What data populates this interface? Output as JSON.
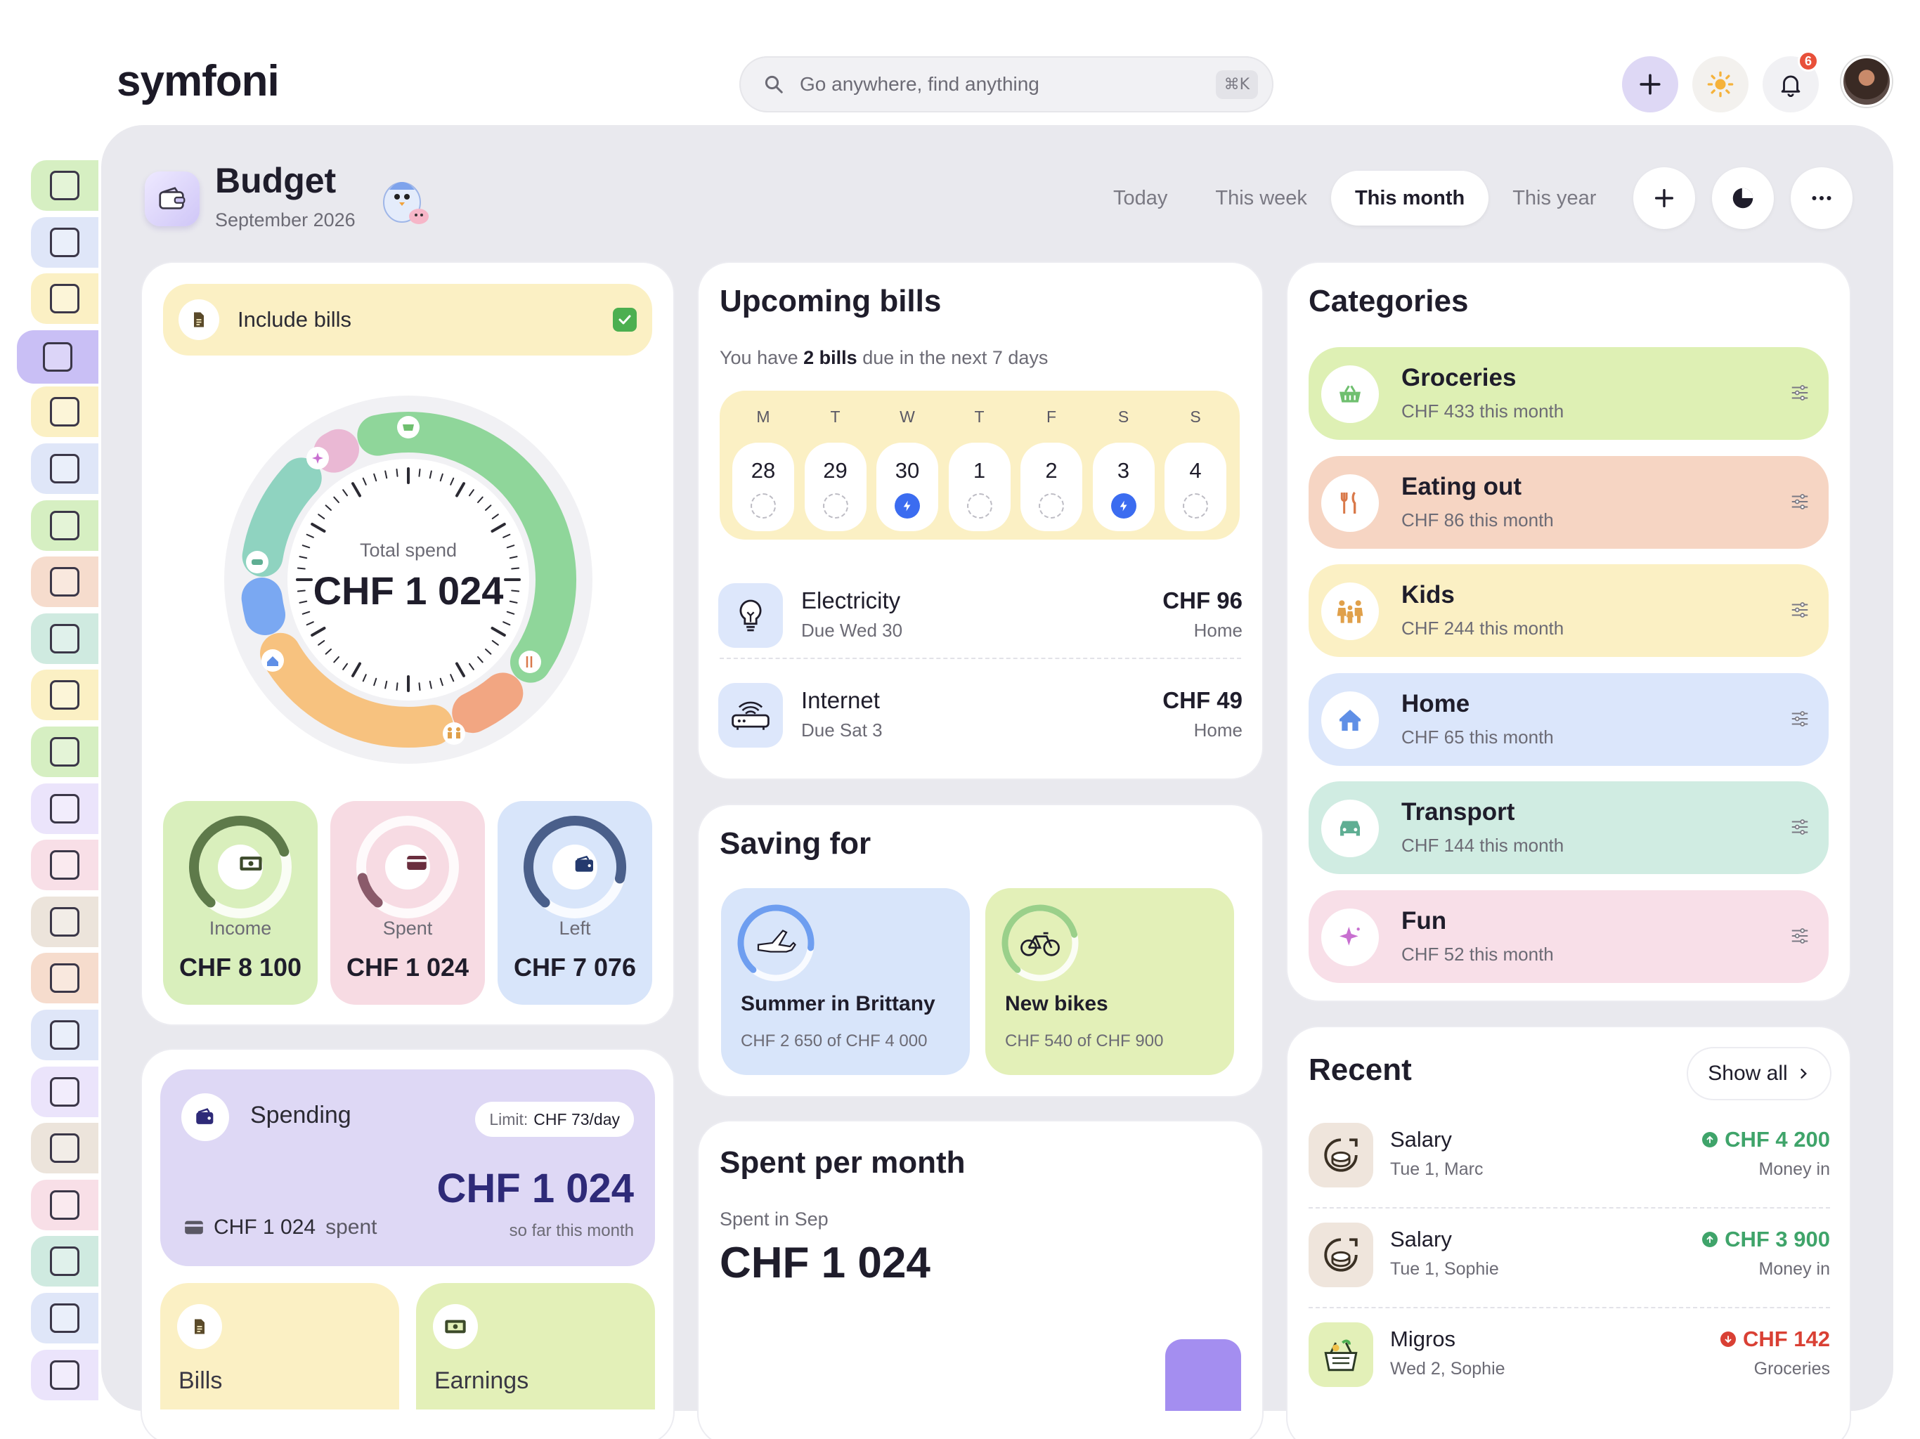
{
  "app": {
    "logo_text": "symfoni",
    "logo_dot": "i"
  },
  "search": {
    "placeholder": "Go anywhere, find anything",
    "shortcut": "⌘K"
  },
  "topbar": {
    "notifications_count": "6"
  },
  "sidebar": {
    "items": [
      {
        "name": "home",
        "color": "#d6efc2"
      },
      {
        "name": "calendar",
        "color": "#dfe6f8"
      },
      {
        "name": "notes",
        "color": "#fbf0c4"
      },
      {
        "name": "budget",
        "color": "#c9bff5",
        "active": true
      },
      {
        "name": "cleaning",
        "color": "#fbf0c4"
      },
      {
        "name": "lists",
        "color": "#dfe6f8"
      },
      {
        "name": "fridge",
        "color": "#d6efc2"
      },
      {
        "name": "meals",
        "color": "#f6dccd"
      },
      {
        "name": "timer",
        "color": "#cfeae0"
      },
      {
        "name": "school",
        "color": "#fbf0c4"
      },
      {
        "name": "car",
        "color": "#d6efc2"
      },
      {
        "name": "weather",
        "color": "#ebe4fb"
      },
      {
        "name": "camera",
        "color": "#f8dfe7"
      },
      {
        "name": "travel",
        "color": "#ece4db"
      },
      {
        "name": "pets",
        "color": "#f6dccd"
      },
      {
        "name": "sun",
        "color": "#dfe6f8"
      },
      {
        "name": "books",
        "color": "#ebe4fb"
      },
      {
        "name": "photos",
        "color": "#ece4db"
      },
      {
        "name": "mail",
        "color": "#f8dfe7"
      },
      {
        "name": "house",
        "color": "#cfeae0"
      },
      {
        "name": "reading",
        "color": "#dfe6f8"
      },
      {
        "name": "birds",
        "color": "#ebe4fb"
      }
    ]
  },
  "header": {
    "title": "Budget",
    "subtitle": "September 2026"
  },
  "periods": [
    "Today",
    "This week",
    "This month",
    "This year"
  ],
  "active_period": "This month",
  "include_bills": {
    "label": "Include bills",
    "checked": true
  },
  "total": {
    "label": "Total spend",
    "value": "CHF 1 024"
  },
  "donut_segments": [
    {
      "name": "Groceries",
      "value": 433,
      "color": "#8fd69a"
    },
    {
      "name": "Eating out",
      "value": 86,
      "color": "#f2a682"
    },
    {
      "name": "Kids",
      "value": 244,
      "color": "#f7c27f"
    },
    {
      "name": "Home",
      "value": 65,
      "color": "#7aa8f2"
    },
    {
      "name": "Transport",
      "value": 144,
      "color": "#8fd3c0"
    },
    {
      "name": "Fun",
      "value": 52,
      "color": "#eab8d4"
    }
  ],
  "stats": [
    {
      "label": "Income",
      "value": "CHF 8 100",
      "bg": "#d9efbc",
      "ring": "#5e7a4a",
      "fraction": 0.75
    },
    {
      "label": "Spent",
      "value": "CHF 1 024",
      "bg": "#f7dbe3",
      "ring": "#8a5a6a",
      "fraction": 0.13
    },
    {
      "label": "Left",
      "value": "CHF 7 076",
      "bg": "#d8e5fa",
      "ring": "#4a5f8a",
      "fraction": 0.87
    }
  ],
  "spending": {
    "title": "Spending",
    "limit_label": "Limit:",
    "limit_value": "CHF 73/day",
    "amount": "CHF 1 024",
    "spent_text": "CHF 1 024",
    "spent_suffix": "spent",
    "so_far": "so far this month"
  },
  "mini_cards": [
    {
      "label": "Bills",
      "bg": "#fbf0c4"
    },
    {
      "label": "Earnings",
      "bg": "#e3f0b8"
    }
  ],
  "upcoming": {
    "title": "Upcoming bills",
    "sub_prefix": "You have",
    "sub_count": "2 bills",
    "sub_suffix": "due in the next 7 days",
    "days": [
      {
        "letter": "M",
        "num": "28",
        "bill": false
      },
      {
        "letter": "T",
        "num": "29",
        "bill": false
      },
      {
        "letter": "W",
        "num": "30",
        "bill": true
      },
      {
        "letter": "T",
        "num": "1",
        "bill": false
      },
      {
        "letter": "F",
        "num": "2",
        "bill": false
      },
      {
        "letter": "S",
        "num": "3",
        "bill": true
      },
      {
        "letter": "S",
        "num": "4",
        "bill": false
      }
    ],
    "bills": [
      {
        "name": "Electricity",
        "due": "Due Wed 30",
        "amount": "CHF 96",
        "category": "Home"
      },
      {
        "name": "Internet",
        "due": "Due Sat 3",
        "amount": "CHF 49",
        "category": "Home"
      }
    ]
  },
  "saving": {
    "title": "Saving for",
    "goals": [
      {
        "name": "Summer in Brittany",
        "progress": "CHF 2 650 of CHF 4 000",
        "bg": "#d8e5fa",
        "ring": "#6e9ef0",
        "fraction": 0.66
      },
      {
        "name": "New bikes",
        "progress": "CHF 540 of CHF 900",
        "bg": "#e3f0b8",
        "ring": "#9ad08a",
        "fraction": 0.6
      }
    ]
  },
  "spent_per_month": {
    "title": "Spent per month",
    "sub": "Spent in Sep",
    "value": "CHF 1 024"
  },
  "categories": {
    "title": "Categories",
    "items": [
      {
        "name": "Groceries",
        "amount": "CHF 433 this month",
        "bg": "#def0b4",
        "icon_color": "#6fbf6f"
      },
      {
        "name": "Eating out",
        "amount": "CHF 86 this month",
        "bg": "#f6d5c3",
        "icon_color": "#d9794a"
      },
      {
        "name": "Kids",
        "amount": "CHF 244 this month",
        "bg": "#fbf0c4",
        "icon_color": "#e0a04a"
      },
      {
        "name": "Home",
        "amount": "CHF 65 this month",
        "bg": "#dbe6fb",
        "icon_color": "#5f8fe6"
      },
      {
        "name": "Transport",
        "amount": "CHF 144 this month",
        "bg": "#d0ece2",
        "icon_color": "#5fae93"
      },
      {
        "name": "Fun",
        "amount": "CHF 52 this month",
        "bg": "#f8dfe8",
        "icon_color": "#c86fd0"
      }
    ]
  },
  "recent": {
    "title": "Recent",
    "show_all": "Show all",
    "items": [
      {
        "name": "Salary",
        "meta": "Tue 1, Marc",
        "amount": "CHF 4 200",
        "type": "Money in",
        "direction": "in"
      },
      {
        "name": "Salary",
        "meta": "Tue 1, Sophie",
        "amount": "CHF 3 900",
        "type": "Money in",
        "direction": "in"
      },
      {
        "name": "Migros",
        "meta": "Wed 2, Sophie",
        "amount": "CHF 142",
        "type": "Groceries",
        "direction": "out"
      }
    ]
  },
  "colors": {
    "accent": "#3b6cf0",
    "money_in": "#3fa46a",
    "money_out": "#d94034",
    "dark_amount": "#2e2a78"
  }
}
